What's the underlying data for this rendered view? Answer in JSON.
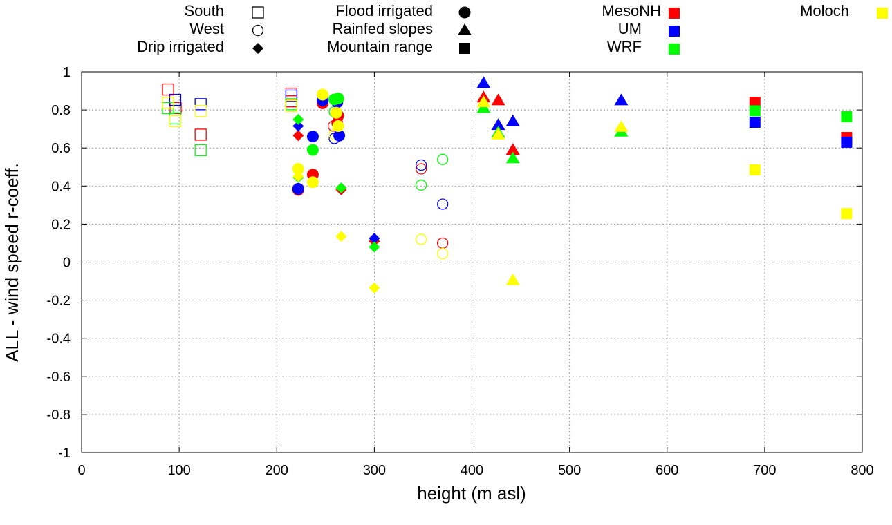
{
  "chart_data": {
    "type": "scatter",
    "xlabel": "height (m asl)",
    "ylabel": "ALL - wind speed r-coeff.",
    "xlim": [
      0,
      800
    ],
    "ylim": [
      -1,
      1
    ],
    "xticks": [
      "0",
      "100",
      "200",
      "300",
      "400",
      "500",
      "600",
      "700",
      "800"
    ],
    "yticks": [
      "-1",
      "-0.8",
      "-0.6",
      "-0.4",
      "-0.2",
      "0",
      "0.2",
      "0.4",
      "0.6",
      "0.8",
      "1"
    ],
    "grid": true,
    "legend_locations": [
      {
        "name": "South",
        "marker": "open-square"
      },
      {
        "name": "West",
        "marker": "open-circle"
      },
      {
        "name": "Drip irrigated",
        "marker": "diamond"
      },
      {
        "name": "Flood irrigated",
        "marker": "circle"
      },
      {
        "name": "Rainfed slopes",
        "marker": "triangle"
      },
      {
        "name": "Mountain range",
        "marker": "square"
      }
    ],
    "legend_models": [
      {
        "name": "MesoNH",
        "color": "#ff0000"
      },
      {
        "name": "UM",
        "color": "#0000ff"
      },
      {
        "name": "WRF",
        "color": "#00ff00"
      },
      {
        "name": "Moloch",
        "color": "#ffff00"
      }
    ],
    "series": [
      {
        "location": "South",
        "marker": "open-square",
        "model": "MesoNH",
        "points": [
          [
            88.6,
            0.907
          ],
          [
            96.4,
            0.81
          ],
          [
            122,
            0.67
          ],
          [
            215,
            0.885
          ],
          [
            215,
            0.845
          ]
        ]
      },
      {
        "location": "South",
        "marker": "open-square",
        "model": "UM",
        "points": [
          [
            96,
            0.853
          ],
          [
            122,
            0.83
          ],
          [
            215,
            0.875
          ]
        ]
      },
      {
        "location": "South",
        "marker": "open-square",
        "model": "WRF",
        "points": [
          [
            88.6,
            0.81
          ],
          [
            96,
            0.755
          ],
          [
            122,
            0.588
          ],
          [
            215,
            0.83
          ]
        ]
      },
      {
        "location": "South",
        "marker": "open-square",
        "model": "Moloch",
        "points": [
          [
            88.6,
            0.838
          ],
          [
            96,
            0.74
          ],
          [
            122,
            0.795
          ],
          [
            215,
            0.82
          ]
        ]
      },
      {
        "location": "West",
        "marker": "open-circle",
        "model": "MesoNH",
        "points": [
          [
            258,
            0.715
          ],
          [
            348,
            0.49
          ],
          [
            370,
            0.1
          ]
        ]
      },
      {
        "location": "West",
        "marker": "open-circle",
        "model": "UM",
        "points": [
          [
            259,
            0.65
          ],
          [
            348,
            0.51
          ],
          [
            370,
            0.305
          ]
        ]
      },
      {
        "location": "West",
        "marker": "open-circle",
        "model": "WRF",
        "points": [
          [
            259,
            0.79
          ],
          [
            348,
            0.405
          ],
          [
            370,
            0.54
          ]
        ]
      },
      {
        "location": "West",
        "marker": "open-circle",
        "model": "Moloch",
        "points": [
          [
            259,
            0.67
          ],
          [
            348,
            0.12
          ],
          [
            370,
            0.045
          ]
        ]
      },
      {
        "location": "Drip irrigated",
        "marker": "diamond",
        "model": "MesoNH",
        "points": [
          [
            222,
            0.665
          ],
          [
            266,
            0.38
          ],
          [
            300,
            0.11
          ]
        ]
      },
      {
        "location": "Drip irrigated",
        "marker": "diamond",
        "model": "UM",
        "points": [
          [
            222,
            0.715
          ],
          [
            300,
            0.125
          ]
        ]
      },
      {
        "location": "Drip irrigated",
        "marker": "diamond",
        "model": "WRF",
        "points": [
          [
            222,
            0.75
          ],
          [
            266,
            0.39
          ],
          [
            300,
            0.08
          ],
          [
            222,
            0.445
          ]
        ]
      },
      {
        "location": "Drip irrigated",
        "marker": "diamond",
        "model": "Moloch",
        "points": [
          [
            222,
            0.45
          ],
          [
            266,
            0.135
          ],
          [
            300,
            -0.135
          ]
        ]
      },
      {
        "location": "Flood irrigated",
        "marker": "circle",
        "model": "MesoNH",
        "points": [
          [
            247,
            0.835
          ],
          [
            263,
            0.77
          ],
          [
            262,
            0.73
          ],
          [
            222,
            0.38
          ],
          [
            237,
            0.46
          ]
        ]
      },
      {
        "location": "Flood irrigated",
        "marker": "circle",
        "model": "UM",
        "points": [
          [
            247,
            0.85
          ],
          [
            262,
            0.84
          ],
          [
            264,
            0.665
          ],
          [
            237,
            0.66
          ],
          [
            222,
            0.385
          ]
        ]
      },
      {
        "location": "Flood irrigated",
        "marker": "circle",
        "model": "WRF",
        "points": [
          [
            237,
            0.59
          ],
          [
            259,
            0.855
          ],
          [
            263,
            0.86
          ]
        ]
      },
      {
        "location": "Flood irrigated",
        "marker": "circle",
        "model": "Moloch",
        "points": [
          [
            247,
            0.88
          ],
          [
            261,
            0.785
          ],
          [
            263,
            0.715
          ],
          [
            222,
            0.49
          ],
          [
            237,
            0.42
          ]
        ]
      },
      {
        "location": "Rainfed slopes",
        "marker": "triangle",
        "model": "MesoNH",
        "points": [
          [
            412,
            0.865
          ],
          [
            427,
            0.85
          ],
          [
            442,
            0.59
          ]
        ]
      },
      {
        "location": "Rainfed slopes",
        "marker": "triangle",
        "model": "UM",
        "points": [
          [
            412,
            0.94
          ],
          [
            427,
            0.72
          ],
          [
            442,
            0.74
          ],
          [
            553,
            0.85
          ]
        ]
      },
      {
        "location": "Rainfed slopes",
        "marker": "triangle",
        "model": "WRF",
        "points": [
          [
            412,
            0.81
          ],
          [
            427,
            0.68
          ],
          [
            442,
            0.545
          ],
          [
            553,
            0.685
          ]
        ]
      },
      {
        "location": "Rainfed slopes",
        "marker": "triangle",
        "model": "Moloch",
        "points": [
          [
            412,
            0.84
          ],
          [
            427,
            0.67
          ],
          [
            442,
            -0.095
          ],
          [
            553,
            0.71
          ]
        ]
      },
      {
        "location": "Mountain range",
        "marker": "square",
        "model": "MesoNH",
        "points": [
          [
            690,
            0.84
          ],
          [
            784,
            0.655
          ]
        ]
      },
      {
        "location": "Mountain range",
        "marker": "square",
        "model": "UM",
        "points": [
          [
            690,
            0.735
          ],
          [
            784,
            0.63
          ]
        ]
      },
      {
        "location": "Mountain range",
        "marker": "square",
        "model": "WRF",
        "points": [
          [
            690,
            0.795
          ],
          [
            784,
            0.765
          ]
        ]
      },
      {
        "location": "Mountain range",
        "marker": "square",
        "model": "Moloch",
        "points": [
          [
            690,
            0.485
          ],
          [
            784,
            0.255
          ]
        ]
      }
    ]
  }
}
